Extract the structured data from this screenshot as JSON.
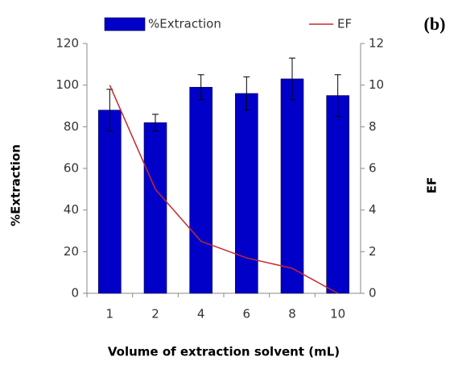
{
  "chart_data": {
    "type": "bar",
    "panel_label": "(b)",
    "x_label": "Volume of extraction solvent (mL)",
    "y_label": "%Extraction",
    "y2_label": "EF",
    "categories": [
      "1",
      "2",
      "4",
      "6",
      "8",
      "10"
    ],
    "series": [
      {
        "name": "%Extraction",
        "color": "#0000c8",
        "type": "bar",
        "values": [
          88,
          82,
          99,
          96,
          103,
          95
        ],
        "errors": [
          10,
          4,
          6,
          8,
          10,
          10
        ]
      },
      {
        "name": "EF",
        "color": "#c8282d",
        "type": "line",
        "axis": "y2",
        "values": [
          10,
          5,
          2.5,
          1.7,
          1.2,
          0
        ]
      }
    ],
    "ylim": [
      0,
      120
    ],
    "yticks": [
      0,
      20,
      40,
      60,
      80,
      100,
      120
    ],
    "y2lim": [
      0,
      12
    ],
    "y2ticks": [
      0,
      2,
      4,
      6,
      8,
      10,
      12
    ],
    "grid": false
  }
}
